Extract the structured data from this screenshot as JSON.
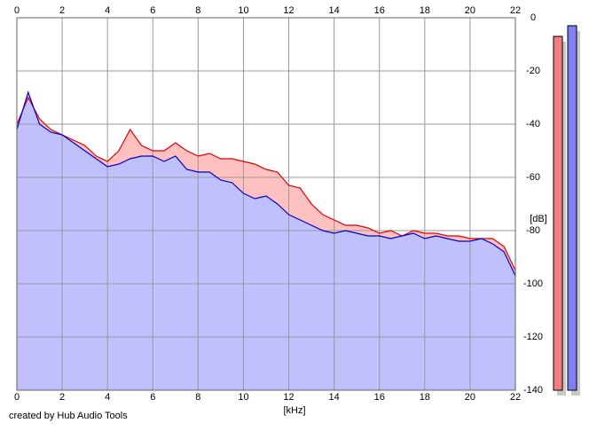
{
  "chart_data": {
    "type": "spectrum",
    "x_label": "[kHz]",
    "y_label": "[dB]",
    "credit": "created by Hub Audio Tools",
    "xlim": [
      0,
      22
    ],
    "ylim": [
      -140,
      0
    ],
    "xticks": [
      0,
      2,
      4,
      6,
      8,
      10,
      12,
      14,
      16,
      18,
      20,
      22
    ],
    "yticks": [
      0,
      -20,
      -40,
      -60,
      -80,
      -100,
      -120,
      -140
    ],
    "grid": true,
    "x": [
      0,
      0.5,
      1,
      1.5,
      2,
      2.5,
      3,
      3.5,
      4,
      4.5,
      5,
      5.5,
      6,
      6.5,
      7,
      7.5,
      8,
      8.5,
      9,
      9.5,
      10,
      10.5,
      11,
      11.5,
      12,
      12.5,
      13,
      13.5,
      14,
      14.5,
      15,
      15.5,
      16,
      16.5,
      17,
      17.5,
      18,
      18.5,
      19,
      19.5,
      20,
      20.5,
      21,
      21.5,
      22
    ],
    "series": [
      {
        "color": "#e00000",
        "fill": "#ffc0c0",
        "values": [
          -40,
          -30,
          -38,
          -42,
          -44,
          -46,
          -48,
          -52,
          -54,
          -50,
          -42,
          -48,
          -50,
          -50,
          -47,
          -50,
          -52,
          -51,
          -53,
          -53,
          -54,
          -55,
          -57,
          -58,
          -63,
          -64,
          -70,
          -74,
          -76,
          -78,
          -78,
          -79,
          -81,
          -80,
          -82,
          -80,
          -81,
          -81,
          -82,
          -82,
          -83,
          -83,
          -83,
          -86,
          -95
        ]
      },
      {
        "color": "#0000c8",
        "fill": "#c0c0ff",
        "values": [
          -42,
          -28,
          -40,
          -43,
          -44,
          -47,
          -50,
          -53,
          -56,
          -55,
          -53,
          -52,
          -52,
          -54,
          -52,
          -57,
          -58,
          -58,
          -61,
          -62,
          -66,
          -68,
          -67,
          -70,
          -74,
          -76,
          -78,
          -80,
          -81,
          -80,
          -81,
          -82,
          -82,
          -83,
          -82,
          -81,
          -83,
          -82,
          -83,
          -84,
          -84,
          -83,
          -85,
          -88,
          -97
        ]
      }
    ],
    "levels": [
      {
        "color": "#f08080",
        "value": -7
      },
      {
        "color": "#8080f0",
        "value": -3
      }
    ]
  }
}
